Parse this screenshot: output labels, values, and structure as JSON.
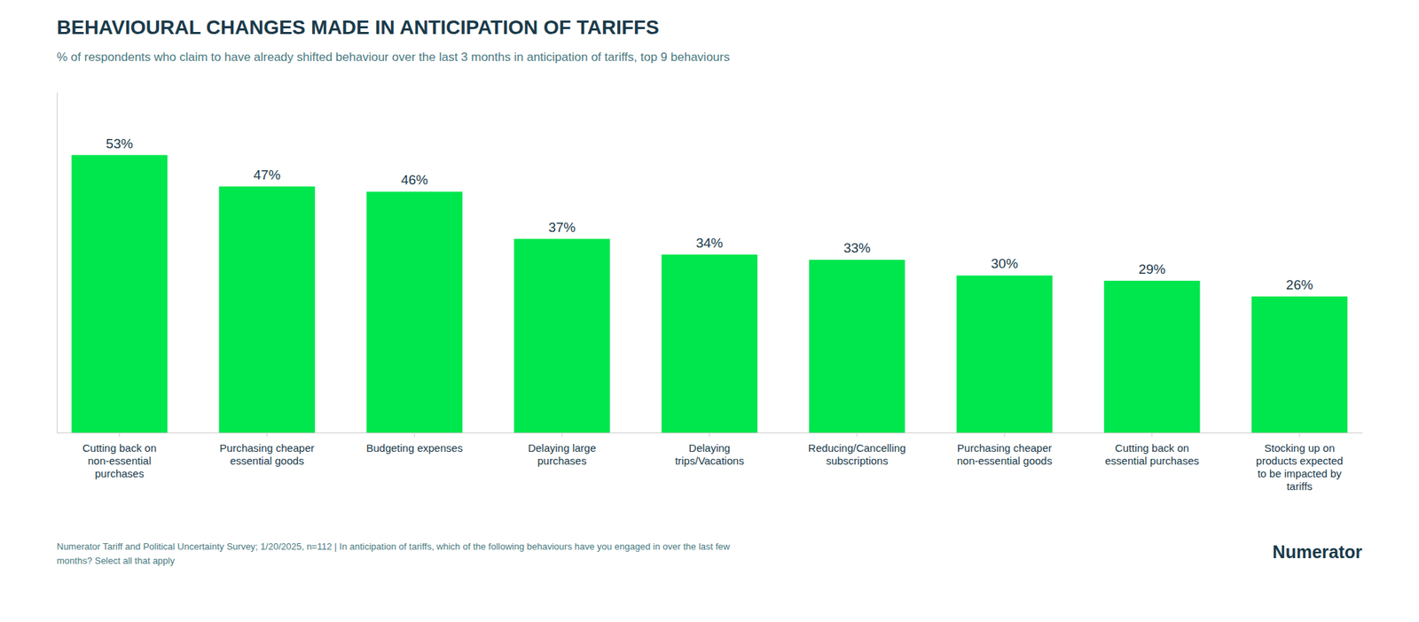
{
  "chart_data": {
    "type": "bar",
    "title": "BEHAVIOURAL CHANGES MADE IN ANTICIPATION OF TARIFFS",
    "subtitle": "% of respondents who claim to have already shifted behaviour over the last 3 months in anticipation of tariffs, top 9 behaviours",
    "footnote": [
      "Numerator Tariff and Political Uncertainty Survey; 1/20/2025, n=112 | In anticipation of tariffs, which of the following behaviours have you engaged in over the last few",
      "months? Select all that apply"
    ],
    "annotations": [
      "Numerator"
    ],
    "categories": [
      "Cutting back on\nnon-essential\npurchases",
      "Purchasing cheaper\nessential goods",
      "Budgeting expenses",
      "Delaying large\npurchases",
      "Delaying\ntrips/Vacations",
      "Reducing/Cancelling\nsubscriptions",
      "Purchasing cheaper\nnon-essential goods",
      "Cutting back on\nessential purchases",
      "Stocking up on\nproducts expected\nto be impacted by\ntariffs"
    ],
    "values": [
      53,
      47,
      46,
      37,
      34,
      33,
      30,
      29,
      26
    ],
    "value_labels": [
      "53%",
      "47%",
      "46%",
      "37%",
      "34%",
      "33%",
      "30%",
      "29%",
      "26%"
    ],
    "data_labels": true,
    "color": "#00E64D",
    "ylim": [
      0,
      65
    ],
    "tick_labels": "x",
    "grid": false
  }
}
